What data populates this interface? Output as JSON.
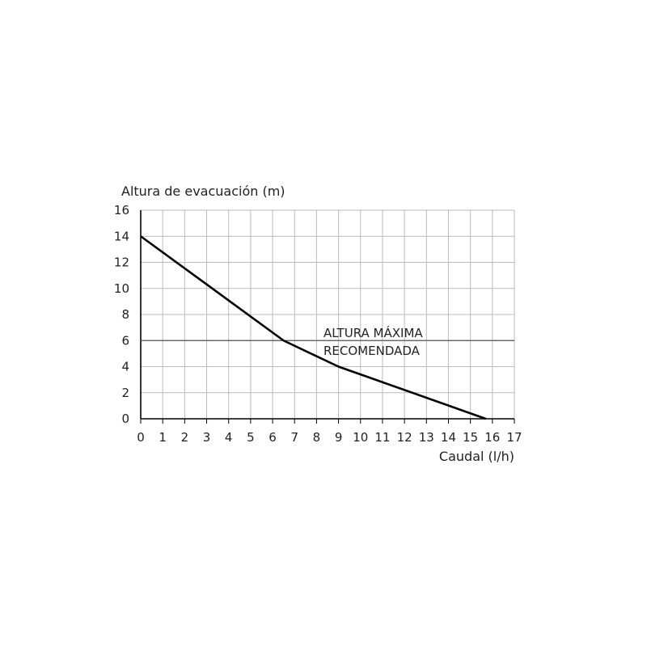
{
  "chart_data": {
    "type": "line",
    "title": "",
    "ylabel": "Altura de evacuación (m)",
    "xlabel": "Caudal (l/h)",
    "xlim": [
      0,
      17
    ],
    "ylim": [
      0,
      16
    ],
    "x_ticks": [
      "0",
      "1",
      "2",
      "3",
      "4",
      "5",
      "6",
      "7",
      "8",
      "9",
      "10",
      "11",
      "12",
      "13",
      "14",
      "15",
      "16",
      "17"
    ],
    "y_ticks": [
      "0",
      "2",
      "4",
      "6",
      "8",
      "10",
      "12",
      "14",
      "16"
    ],
    "grid": true,
    "legend": "none",
    "series": [
      {
        "x": [
          0,
          6.5,
          9,
          15.7
        ],
        "y": [
          14,
          6,
          4,
          0
        ]
      }
    ],
    "reference_line": {
      "y": 6,
      "label_line1": "ALTURA MÁXIMA",
      "label_line2": "RECOMENDADA"
    },
    "colors": {
      "grid": "#bbbbbb",
      "axis": "#000000",
      "series": "#000000",
      "reference": "#555555"
    }
  }
}
